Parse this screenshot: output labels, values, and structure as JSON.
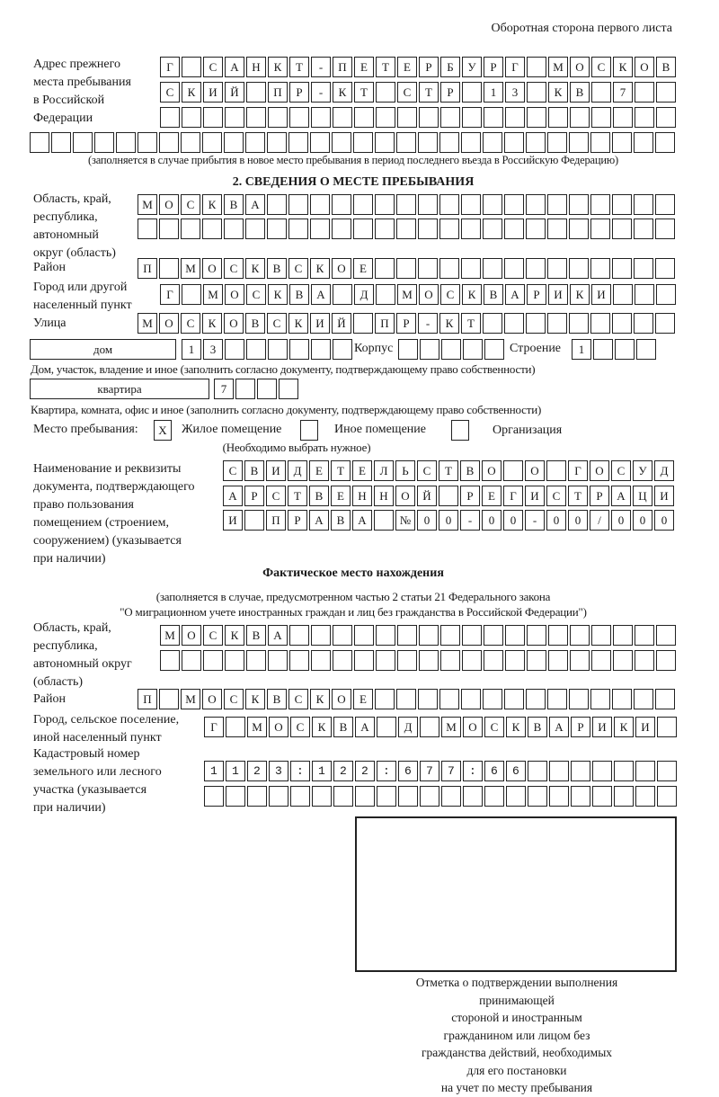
{
  "header": {
    "page_side": "Оборотная сторона первого листа"
  },
  "prev_address": {
    "label": "Адрес прежнего\nместа пребывания\nв Российской\nФедерации",
    "rows": [
      "Г САНКТ-ПЕТЕРБУРГ МОСКОВ",
      "СКИЙ ПР-КТ СТР 13 КВ 7",
      "",
      ""
    ],
    "note": "(заполняется в случае прибытия в новое место пребывания в период последнего въезда в Российскую Федерацию)"
  },
  "section2": {
    "title": "2. СВЕДЕНИЯ О МЕСТЕ ПРЕБЫВАНИЯ",
    "region_label": "Область, край,\nреспублика,\nавтономный\nокруг (область)",
    "region_rows": [
      "МОСКВА",
      ""
    ],
    "district_label": "Район",
    "district": "П МОСКВСКОЕ",
    "city_label": "Город или другой\nнаселенный пункт",
    "city": "Г МОСКВА Д МОСКВАРИКИ",
    "street_label": "Улица",
    "street": "МОСКОВСКИЙ ПР-КТ",
    "house_type": "дом",
    "house_number": "13",
    "building_label": "Корпус",
    "building": "",
    "structure_label": "Строение",
    "structure": "1",
    "house_caption": "Дом, участок, владение и иное (заполнить согласно документу, подтверждающему право собственности)",
    "apartment_type": "квартира",
    "apartment_number": "7",
    "apartment_caption": "Квартира, комната, офис и иное (заполнить согласно документу, подтверждающему право собственности)",
    "stay_place_label": "Место пребывания:",
    "stay_options": [
      {
        "mark": "X",
        "label": "Жилое помещение",
        "checked": true
      },
      {
        "mark": "",
        "label": "Иное помещение",
        "checked": false
      },
      {
        "mark": "",
        "label": "Организация",
        "checked": false
      }
    ],
    "stay_hint": "(Необходимо выбрать нужное)",
    "doc_label": "Наименование и реквизиты\nдокумента, подтверждающего\nправо пользования\nпомещением (строением,\nсооружением) (указывается\nпри наличии)",
    "doc_rows": [
      "СВИДЕТЕЛЬСТВО О ГОСУД",
      "АРСТВЕННОЙ РЕГИСТРАЦИ",
      "И ПРАВА №00-00-00/000"
    ]
  },
  "actual_location": {
    "title": "Фактическое место нахождения",
    "note_line1": "(заполняется в случае, предусмотренном частью 2 статьи 21 Федерального закона",
    "note_line2": "\"О миграционном учете иностранных граждан и лиц без гражданства в Российской Федерации\")",
    "region_label": "Область, край,\nреспублика,\nавтономный округ\n(область)",
    "region_rows": [
      "МОСКВА",
      ""
    ],
    "district_label": "Район",
    "district": "П МОСКВСКОЕ",
    "city_label": "Город, сельское поселение,\nиной населенный пункт",
    "city": "Г МОСКВА Д МОСКВАРИКИ",
    "cadastral_label": "Кадастровый номер\nземельного или лесного\nучастка (указывается\nпри наличии)",
    "cadastral_rows": [
      "1123:122:677:66",
      ""
    ]
  },
  "confirmation": {
    "caption": "Отметка о подтверждении выполнения принимающей\nстороной и иностранным гражданином или лицом без\nгражданства действий, необходимых для его постановки\nна учет по месту пребывания"
  }
}
